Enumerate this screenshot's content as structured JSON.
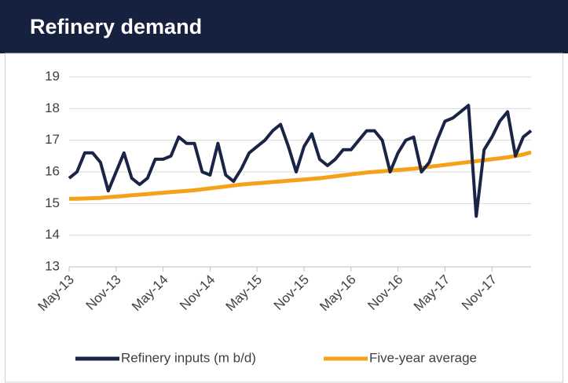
{
  "chart_data": {
    "type": "line",
    "title": "Refinery demand",
    "categories": [
      "May-13",
      null,
      null,
      null,
      null,
      null,
      "Nov-13",
      null,
      null,
      null,
      null,
      null,
      "May-14",
      null,
      null,
      null,
      null,
      null,
      "Nov-14",
      null,
      null,
      null,
      null,
      null,
      "May-15",
      null,
      null,
      null,
      null,
      null,
      "Nov-15",
      null,
      null,
      null,
      null,
      null,
      "May-16",
      null,
      null,
      null,
      null,
      null,
      "Nov-16",
      null,
      null,
      null,
      null,
      null,
      "May-17",
      null,
      null,
      null,
      null,
      null,
      "Nov-17",
      null,
      null,
      null,
      null,
      null
    ],
    "series": [
      {
        "name": "Refinery inputs (m b/d)",
        "color": "#1a2447",
        "values": [
          15.8,
          16.0,
          16.6,
          16.6,
          16.3,
          15.4,
          16.0,
          16.6,
          15.8,
          15.6,
          15.8,
          16.4,
          16.4,
          16.5,
          17.1,
          16.9,
          16.9,
          16.0,
          15.9,
          16.9,
          15.9,
          15.7,
          16.1,
          16.6,
          16.8,
          17.0,
          17.3,
          17.5,
          16.8,
          16.0,
          16.8,
          17.2,
          16.4,
          16.2,
          16.4,
          16.7,
          16.7,
          17.0,
          17.3,
          17.3,
          17.0,
          16.0,
          16.6,
          17.0,
          17.1,
          16.0,
          16.3,
          17.0,
          17.6,
          17.7,
          17.9,
          18.1,
          14.6,
          16.7,
          17.1,
          17.6,
          17.9,
          16.5,
          17.1,
          17.3
        ]
      },
      {
        "name": "Five-year average",
        "color": "#f5a21b",
        "values": [
          15.15,
          15.15,
          15.16,
          15.17,
          15.18,
          15.2,
          15.22,
          15.24,
          15.26,
          15.28,
          15.3,
          15.32,
          15.34,
          15.36,
          15.38,
          15.4,
          15.42,
          15.45,
          15.48,
          15.51,
          15.54,
          15.57,
          15.6,
          15.62,
          15.64,
          15.66,
          15.68,
          15.7,
          15.72,
          15.74,
          15.76,
          15.78,
          15.8,
          15.83,
          15.86,
          15.89,
          15.92,
          15.95,
          15.98,
          16.0,
          16.02,
          16.04,
          16.06,
          16.08,
          16.1,
          16.13,
          16.16,
          16.19,
          16.22,
          16.25,
          16.28,
          16.31,
          16.34,
          16.37,
          16.4,
          16.43,
          16.46,
          16.5,
          16.55,
          16.62
        ]
      }
    ],
    "ylim": [
      13,
      19
    ],
    "yticks": [
      13,
      14,
      15,
      16,
      17,
      18,
      19
    ],
    "grid": true,
    "legend": "bottom"
  }
}
